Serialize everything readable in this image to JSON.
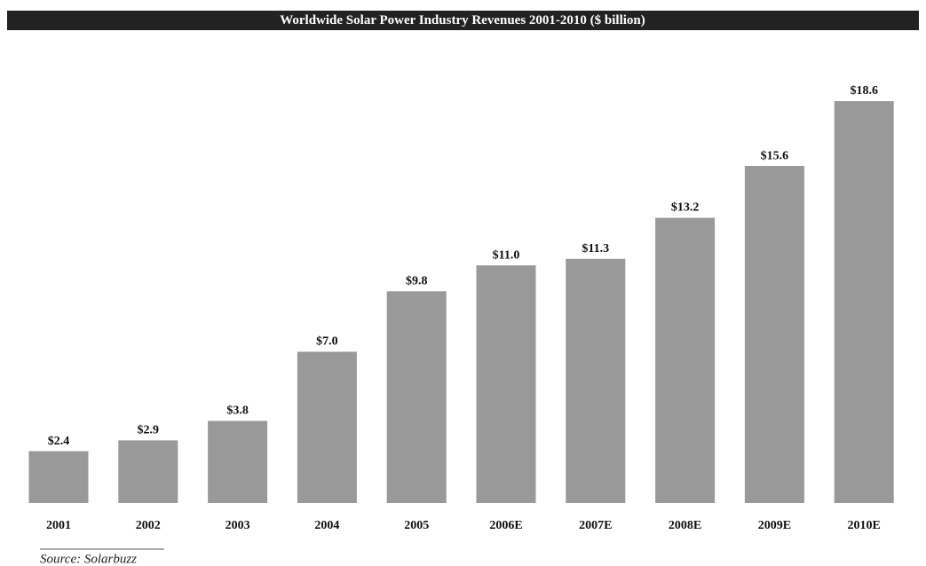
{
  "chart_data": {
    "type": "bar",
    "title": "Worldwide Solar Power Industry Revenues 2001-2010 ($ billion)",
    "categories": [
      "2001",
      "2002",
      "2003",
      "2004",
      "2005",
      "2006E",
      "2007E",
      "2008E",
      "2009E",
      "2010E"
    ],
    "values": [
      2.4,
      2.9,
      3.8,
      7.0,
      9.8,
      11.0,
      11.3,
      13.2,
      15.6,
      18.6
    ],
    "value_labels": [
      "$2.4",
      "$2.9",
      "$3.8",
      "$7.0",
      "$9.8",
      "$11.0",
      "$11.3",
      "$13.2",
      "$15.6",
      "$18.6"
    ],
    "color": "#999999",
    "source": "Source: Solarbuzz"
  }
}
